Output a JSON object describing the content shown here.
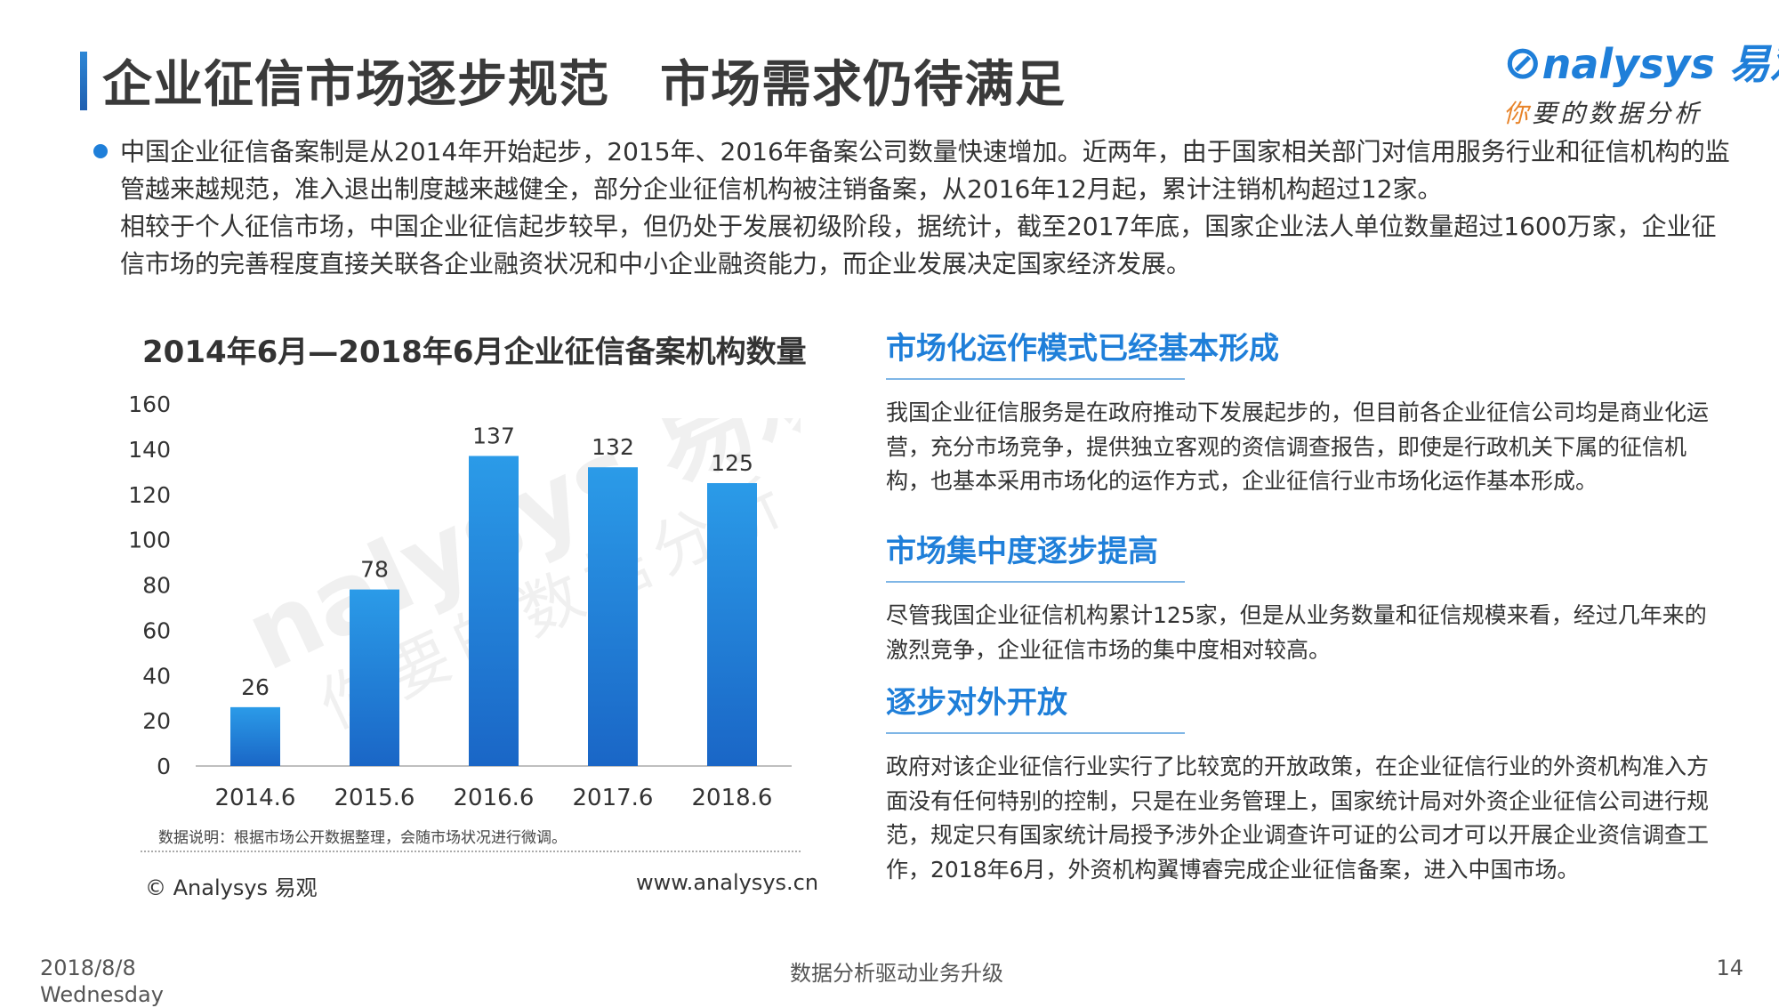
{
  "header": {
    "title": "企业征信市场逐步规范　市场需求仍待满足",
    "logo_main": "nalysys 易观",
    "logo_sub_hl": "你",
    "logo_sub_rest": "要的数据分析"
  },
  "intro": {
    "paragraph1": "中国企业征信备案制是从2014年开始起步，2015年、2016年备案公司数量快速增加。近两年，由于国家相关部门对信用服务行业和征信机构的监管越来越规范，准入退出制度越来越健全，部分企业征信机构被注销备案，从2016年12月起，累计注销机构超过12家。",
    "paragraph2": "相较于个人征信市场，中国企业征信起步较早，但仍处于发展初级阶段，据统计，截至2017年底，国家企业法人单位数量超过1600万家，企业征信市场的完善程度直接关联各企业融资状况和中小企业融资能力，而企业发展决定国家经济发展。"
  },
  "chart_data": {
    "type": "bar",
    "title": "2014年6月—2018年6月企业征信备案机构数量",
    "categories": [
      "2014.6",
      "2015.6",
      "2016.6",
      "2017.6",
      "2018.6"
    ],
    "values": [
      26,
      78,
      137,
      132,
      125
    ],
    "ylim": [
      0,
      160
    ],
    "yticks": [
      0,
      20,
      40,
      60,
      80,
      100,
      120,
      140,
      160
    ],
    "xlabel": "",
    "ylabel": "",
    "grid": false,
    "bar_color_top": "#2b9be8",
    "bar_color_bottom": "#1a66c6"
  },
  "chart_footer": {
    "note": "数据说明：根据市场公开数据整理，会随市场状况进行微调。",
    "copyright": "© Analysys 易观",
    "site": "www.analysys.cn"
  },
  "sections": [
    {
      "heading": "市场化运作模式已经基本形成",
      "body": "我国企业征信服务是在政府推动下发展起步的，但目前各企业征信公司均是商业化运营，充分市场竞争，提供独立客观的资信调查报告，即使是行政机关下属的征信机构，也基本采用市场化的运作方式，企业征信行业市场化运作基本形成。"
    },
    {
      "heading": "市场集中度逐步提高",
      "body": "尽管我国企业征信机构累计125家，但是从业务数量和征信规模来看，经过几年来的激烈竞争，企业征信市场的集中度相对较高。"
    },
    {
      "heading": "逐步对外开放",
      "body": "政府对该企业征信行业实行了比较宽的开放政策，在企业征信行业的外资机构准入方面没有任何特别的控制，只是在业务管理上，国家统计局对外资企业征信公司进行规范，规定只有国家统计局授予涉外企业调查许可证的公司才可以开展企业资信调查工作，2018年6月，外资机构翼博睿完成企业征信备案，进入中国市场。"
    }
  ],
  "footer": {
    "date": "2018/8/8",
    "weekday": "Wednesday",
    "center": "数据分析驱动业务升级",
    "page": "14"
  },
  "watermark": {
    "main": "nalysys 易观",
    "sub": "你要的数据分析"
  }
}
